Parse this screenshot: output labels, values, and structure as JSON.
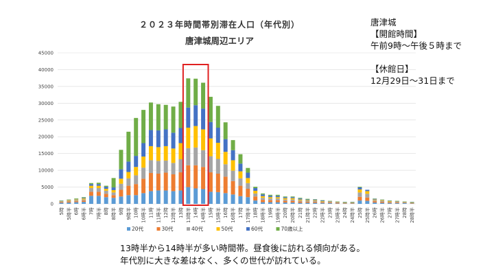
{
  "title": "２０２３年時間帯別滞在人口（年代別）",
  "subtitle": "唐津城周辺エリア",
  "side": {
    "name": "唐津城",
    "hours_label": "【開館時間】",
    "hours": "午前9時～午後５時まで",
    "closed_label": "【休館日】",
    "closed": "12月29日～31日まで"
  },
  "notes": [
    "13時半から14時半が多い時間帯。昼食後に訪れる傾向がある。",
    "年代別に大きな差はなく、多くの世代が訪れている。"
  ],
  "colors": {
    "20s": "#5b9bd5",
    "30s": "#ed7d31",
    "40s": "#a5a5a5",
    "50s": "#ffc000",
    "60s": "#4472c4",
    "70s": "#70ad47",
    "highlight": "#e02020",
    "grid": "#d9d9d9"
  },
  "chart_data": {
    "type": "bar",
    "stacked": true,
    "title": "２０２３年時間帯別滞在人口（年代別）",
    "subtitle": "唐津城周辺エリア",
    "ylim": [
      0,
      45000
    ],
    "yticks": [
      0,
      5000,
      10000,
      15000,
      20000,
      25000,
      30000,
      35000,
      40000,
      45000
    ],
    "grid": true,
    "legend_position": "bottom",
    "highlight": [
      "13時半",
      "14時",
      "14時半"
    ],
    "categories": [
      "5時",
      "5時半",
      "6時",
      "6時半",
      "7時",
      "7時半",
      "8時",
      "8時半",
      "9時",
      "9時半",
      "10時",
      "10時半",
      "11時",
      "11時半",
      "12時",
      "12時半",
      "13時",
      "13時半",
      "14時",
      "14時半",
      "15時",
      "15時半",
      "16時",
      "16時半",
      "17時",
      "17時半",
      "18時",
      "18時半",
      "19時",
      "19時半",
      "20時",
      "20時半",
      "21時",
      "21時半",
      "22時",
      "22時半",
      "23時",
      "23時半",
      "24時",
      "24時半",
      "25時",
      "25時半",
      "26時",
      "26時半",
      "27時",
      "27時半",
      "28時",
      "28時半"
    ],
    "series": [
      {
        "name": "20代",
        "values": [
          300,
          400,
          500,
          600,
          2400,
          2400,
          2000,
          1800,
          2200,
          2600,
          2600,
          3200,
          3800,
          4000,
          4000,
          3800,
          4000,
          5000,
          4600,
          4400,
          3600,
          3500,
          3200,
          2800,
          2300,
          2000,
          1000,
          500,
          500,
          500,
          400,
          400,
          300,
          300,
          300,
          200,
          200,
          100,
          100,
          100,
          1000,
          900,
          400,
          300,
          200,
          200,
          200,
          100
        ]
      },
      {
        "name": "30代",
        "values": [
          200,
          300,
          300,
          400,
          1200,
          1200,
          1000,
          800,
          2000,
          2800,
          3300,
          4300,
          5400,
          5000,
          5300,
          5000,
          5400,
          6500,
          6900,
          6600,
          5800,
          5500,
          4900,
          4000,
          3100,
          2500,
          1200,
          700,
          600,
          600,
          500,
          500,
          400,
          300,
          300,
          200,
          200,
          200,
          100,
          100,
          1100,
          1000,
          400,
          300,
          200,
          200,
          100,
          100
        ]
      },
      {
        "name": "40代",
        "values": [
          200,
          200,
          300,
          300,
          1100,
          1100,
          900,
          800,
          1800,
          2200,
          2600,
          3300,
          3800,
          3800,
          3600,
          3400,
          3900,
          5100,
          5300,
          5000,
          4800,
          4400,
          3700,
          3100,
          2200,
          1700,
          900,
          600,
          500,
          500,
          400,
          400,
          300,
          300,
          300,
          200,
          200,
          100,
          100,
          100,
          1300,
          1100,
          300,
          300,
          200,
          200,
          100,
          100
        ]
      },
      {
        "name": "50代",
        "values": [
          100,
          200,
          200,
          300,
          700,
          700,
          600,
          700,
          1500,
          1900,
          2500,
          3300,
          4200,
          4100,
          4300,
          4300,
          4800,
          6100,
          6400,
          6200,
          5300,
          4800,
          3700,
          3100,
          2100,
          1500,
          800,
          500,
          400,
          400,
          400,
          400,
          300,
          200,
          200,
          200,
          100,
          100,
          100,
          100,
          900,
          800,
          200,
          200,
          200,
          100,
          100,
          100
        ]
      },
      {
        "name": "60代",
        "values": [
          100,
          100,
          100,
          200,
          500,
          500,
          600,
          800,
          2800,
          3100,
          3300,
          4000,
          4800,
          5000,
          5000,
          4700,
          4500,
          6000,
          6200,
          6200,
          4900,
          4500,
          3800,
          3000,
          2300,
          1600,
          800,
          500,
          400,
          400,
          300,
          300,
          300,
          200,
          200,
          200,
          100,
          100,
          100,
          100,
          600,
          400,
          200,
          100,
          100,
          100,
          100,
          100
        ]
      },
      {
        "name": "70歳以上",
        "values": [
          100,
          100,
          200,
          200,
          300,
          400,
          300,
          2800,
          5800,
          8900,
          11300,
          9900,
          8200,
          7800,
          7300,
          7800,
          7800,
          8700,
          7900,
          7700,
          7500,
          6500,
          5000,
          3000,
          2800,
          1400,
          400,
          300,
          300,
          300,
          200,
          200,
          200,
          200,
          100,
          100,
          100,
          100,
          100,
          100,
          200,
          0,
          100,
          100,
          100,
          100,
          100,
          100
        ]
      }
    ]
  }
}
